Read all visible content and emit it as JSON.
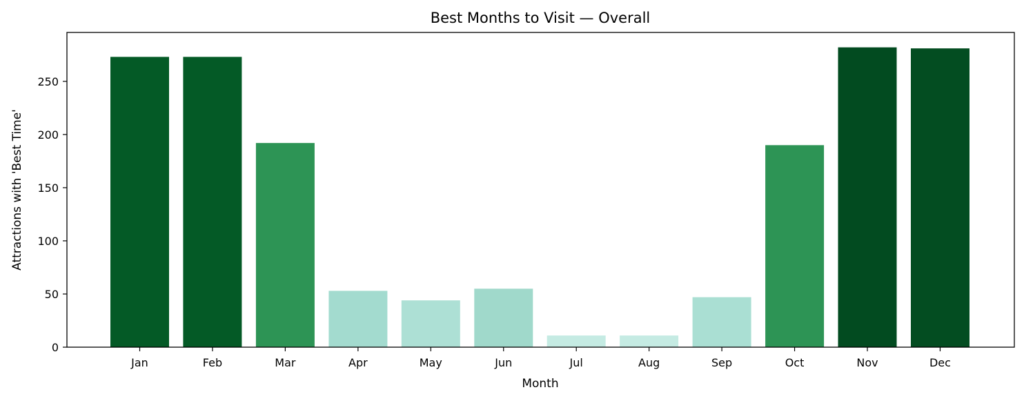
{
  "chart_data": {
    "type": "bar",
    "title": "Best Months to Visit — Overall",
    "xlabel": "Month",
    "ylabel": "Attractions with 'Best Time'",
    "categories": [
      "Jan",
      "Feb",
      "Mar",
      "Apr",
      "May",
      "Jun",
      "Jul",
      "Aug",
      "Sep",
      "Oct",
      "Nov",
      "Dec"
    ],
    "values": [
      273,
      273,
      192,
      53,
      44,
      55,
      11,
      11,
      47,
      190,
      282,
      281
    ],
    "colors": [
      "#045a26",
      "#045a26",
      "#2d9455",
      "#a3dbcf",
      "#ade0d5",
      "#a0d9cb",
      "#c5ebe3",
      "#c5ebe3",
      "#aadfd3",
      "#2d9455",
      "#024b20",
      "#034d21"
    ],
    "ylim": [
      0,
      296
    ],
    "yticks": [
      0,
      50,
      100,
      150,
      200,
      250
    ],
    "grid": false,
    "legend": "none"
  }
}
